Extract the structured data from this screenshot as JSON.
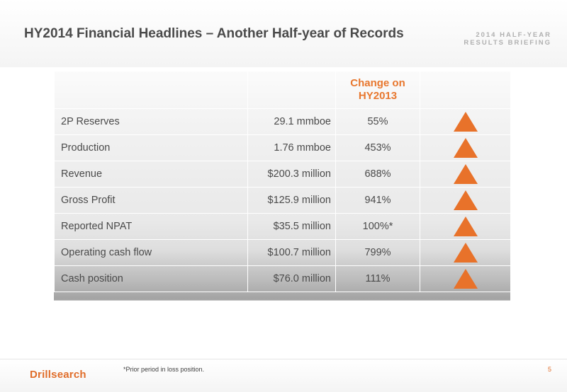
{
  "header": {
    "title": "HY2014 Financial Headlines – Another Half-year of Records",
    "brief_line1": "2014 HALF-YEAR",
    "brief_line2": "RESULTS BRIEFING"
  },
  "table": {
    "change_header_line1": "Change on",
    "change_header_line2": "HY2013",
    "rows": [
      {
        "metric": "2P Reserves",
        "value": "29.1 mmboe",
        "change": "55%",
        "trend_icon": "up-triangle-icon"
      },
      {
        "metric": "Production",
        "value": "1.76 mmboe",
        "change": "453%",
        "trend_icon": "up-triangle-icon"
      },
      {
        "metric": "Revenue",
        "value": "$200.3 million",
        "change": "688%",
        "trend_icon": "up-triangle-icon"
      },
      {
        "metric": "Gross Profit",
        "value": "$125.9 million",
        "change": "941%",
        "trend_icon": "up-triangle-icon"
      },
      {
        "metric": "Reported NPAT",
        "value": "$35.5 million",
        "change": "100%*",
        "trend_icon": "up-triangle-icon"
      },
      {
        "metric": "Operating cash flow",
        "value": "$100.7 million",
        "change": "799%",
        "trend_icon": "up-triangle-icon"
      },
      {
        "metric": "Cash position",
        "value": "$76.0 million",
        "change": "111%",
        "trend_icon": "up-triangle-icon"
      }
    ]
  },
  "footer": {
    "logo_text": "Drillsearch",
    "footnote": "*Prior period in loss position.",
    "page_number": "5"
  },
  "colors": {
    "accent": "#e8722a",
    "title_text": "#4a4a4a",
    "brief_text": "#b0b0b0"
  }
}
